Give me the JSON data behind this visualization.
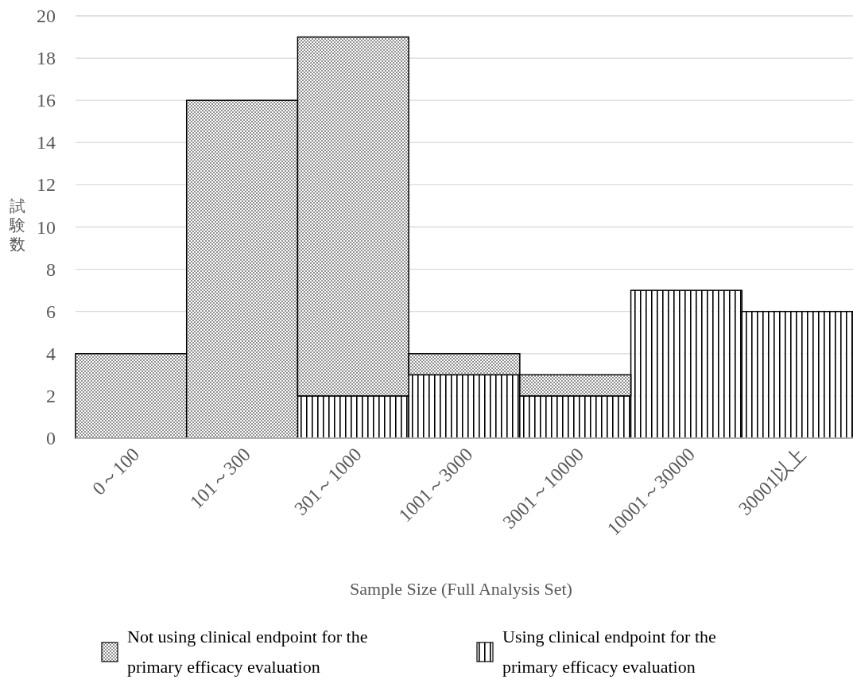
{
  "chart_data": {
    "type": "bar",
    "stacked": true,
    "xlabel": "Sample Size (Full Analysis Set)",
    "ylabel": "試験数",
    "categories": [
      "0～100",
      "101～300",
      "301～1000",
      "1001～3000",
      "3001～10000",
      "10001～30000",
      "30001以上"
    ],
    "series": [
      {
        "name": "Using clinical endpoint for the primary efficacy evaluation",
        "color": "#000000",
        "values": [
          0,
          0,
          2,
          3,
          2,
          7,
          6
        ]
      },
      {
        "name": "Not using clinical endpoint for the primary efficacy evaluation",
        "color": "#000000",
        "values": [
          4,
          16,
          17,
          1,
          1,
          0,
          0
        ]
      }
    ],
    "ylim": [
      0,
      20
    ],
    "yticks": [
      0,
      2,
      4,
      6,
      8,
      10,
      12,
      14,
      16,
      18,
      20
    ],
    "grid": "y",
    "legend": "bottom"
  }
}
